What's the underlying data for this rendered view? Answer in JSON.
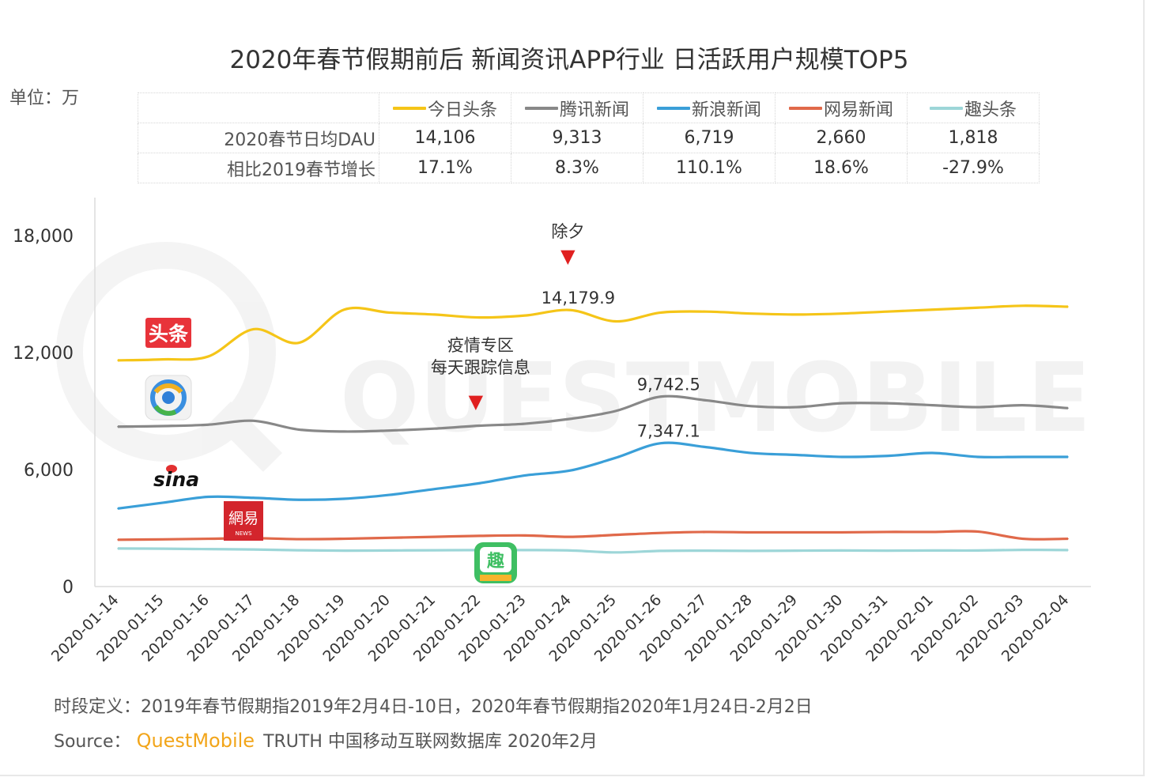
{
  "title": "2020年春节假期前后 新闻资讯APP行业 日活跃用户规模TOP5",
  "unit_label": "单位：万",
  "stats_table": {
    "row_labels": [
      "2020春节日均DAU",
      "相比2019春节增长"
    ],
    "apps": [
      {
        "name": "今日头条",
        "color": "#f5c518",
        "dau": "14,106",
        "growth": "17.1%"
      },
      {
        "name": "腾讯新闻",
        "color": "#888888",
        "dau": "9,313",
        "growth": "8.3%"
      },
      {
        "name": "新浪新闻",
        "color": "#3a9fd8",
        "dau": "6,719",
        "growth": "110.1%"
      },
      {
        "name": "网易新闻",
        "color": "#e0694a",
        "dau": "2,660",
        "growth": "18.6%"
      },
      {
        "name": "趣头条",
        "color": "#9dd6d8",
        "dau": "1,818",
        "growth": "-27.9%"
      }
    ]
  },
  "icons": {
    "toutiao": "头条",
    "netease": "網易",
    "netease_sub": "NEWS",
    "qutoutiao": "趣",
    "sina": "sina"
  },
  "watermark": "QUESTMOBILE",
  "footer": {
    "definition": "时段定义：2019年春节假期指2019年2月4日-10日，2020年春节假期指2020年1月24日-2月2日",
    "source_label": "Source：",
    "source_brand": "QuestMobile",
    "source_rest": "TRUTH 中国移动互联网数据库 2020年2月"
  },
  "chart_data": {
    "type": "line",
    "x": [
      "2020-01-14",
      "2020-01-15",
      "2020-01-16",
      "2020-01-17",
      "2020-01-18",
      "2020-01-19",
      "2020-01-20",
      "2020-01-21",
      "2020-01-22",
      "2020-01-23",
      "2020-01-24",
      "2020-01-25",
      "2020-01-26",
      "2020-01-27",
      "2020-01-28",
      "2020-01-29",
      "2020-01-30",
      "2020-01-31",
      "2020-02-01",
      "2020-02-02",
      "2020-02-03",
      "2020-02-04"
    ],
    "yticks": [
      "0",
      "6,000",
      "12,000",
      "18,000"
    ],
    "ylim": [
      0,
      18000
    ],
    "series": [
      {
        "name": "今日头条",
        "color": "#f5c518",
        "values": [
          11600,
          11650,
          11800,
          13200,
          12500,
          14200,
          14050,
          13950,
          13800,
          13900,
          14180,
          13600,
          14050,
          14100,
          14000,
          13950,
          14000,
          14100,
          14200,
          14300,
          14400,
          14350
        ]
      },
      {
        "name": "腾讯新闻",
        "color": "#888888",
        "values": [
          8200,
          8230,
          8300,
          8500,
          8050,
          7950,
          8000,
          8100,
          8250,
          8350,
          8600,
          9000,
          9740,
          9550,
          9250,
          9200,
          9400,
          9400,
          9300,
          9200,
          9300,
          9150
        ]
      },
      {
        "name": "新浪新闻",
        "color": "#3a9fd8",
        "values": [
          4000,
          4300,
          4600,
          4550,
          4450,
          4500,
          4700,
          5000,
          5300,
          5700,
          5950,
          6600,
          7350,
          7150,
          6850,
          6750,
          6650,
          6700,
          6850,
          6650,
          6650,
          6650
        ]
      },
      {
        "name": "网易新闻",
        "color": "#e0694a",
        "values": [
          2400,
          2420,
          2450,
          2480,
          2430,
          2450,
          2500,
          2550,
          2600,
          2620,
          2550,
          2650,
          2750,
          2800,
          2780,
          2780,
          2780,
          2800,
          2800,
          2820,
          2450,
          2450
        ]
      },
      {
        "name": "趣头条",
        "color": "#9dd6d8",
        "values": [
          1950,
          1940,
          1920,
          1900,
          1860,
          1840,
          1850,
          1860,
          1870,
          1870,
          1850,
          1750,
          1830,
          1840,
          1830,
          1840,
          1850,
          1840,
          1850,
          1850,
          1880,
          1870
        ]
      }
    ],
    "annotations": [
      {
        "text": "除夕",
        "marker": "▼",
        "x": "2020-01-24"
      },
      {
        "text": "疫情专区",
        "text2": "每天跟踪信息",
        "marker": "▼",
        "x": "2020-01-22"
      }
    ],
    "data_labels": [
      {
        "text": "14,179.9",
        "x": "2020-01-24",
        "series": "今日头条"
      },
      {
        "text": "9,742.5",
        "x": "2020-01-26",
        "series": "腾讯新闻"
      },
      {
        "text": "7,347.1",
        "x": "2020-01-26",
        "series": "新浪新闻"
      }
    ],
    "grid": false,
    "legend": "top"
  }
}
